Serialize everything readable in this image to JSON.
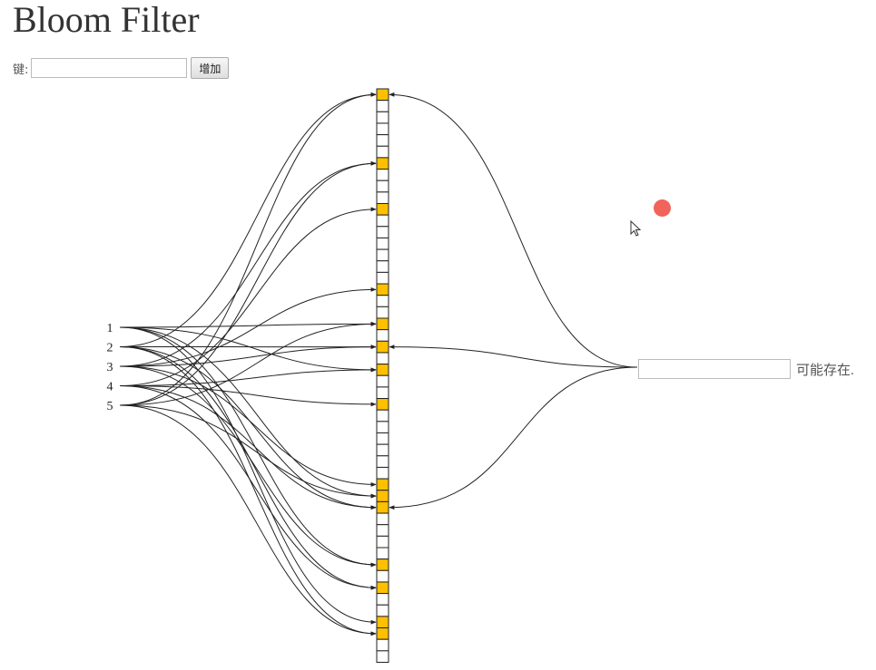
{
  "header": {
    "title": "Bloom Filter"
  },
  "add_form": {
    "key_label": "键:",
    "key_value": "",
    "add_button_label": "增加"
  },
  "query": {
    "input_value": "",
    "result_text": "可能存在."
  },
  "colors": {
    "set_bit": "#ffc000",
    "unset_bit": "#ffffff",
    "stroke": "#222222",
    "cursor_dot": "#f0645a"
  },
  "bloom": {
    "num_bits": 50,
    "keys": [
      "1",
      "2",
      "3",
      "4",
      "5"
    ],
    "set_bits": [
      0,
      6,
      10,
      17,
      20,
      22,
      24,
      27,
      34,
      35,
      36,
      41,
      43,
      46,
      47
    ],
    "key_hashes": [
      [
        20,
        24,
        35,
        41,
        46
      ],
      [
        0,
        22,
        36,
        43,
        47
      ],
      [
        6,
        17,
        22,
        34,
        41
      ],
      [
        10,
        24,
        27,
        36,
        43
      ],
      [
        0,
        6,
        20,
        35,
        47
      ]
    ],
    "query_bits": [
      0,
      22,
      36
    ]
  }
}
